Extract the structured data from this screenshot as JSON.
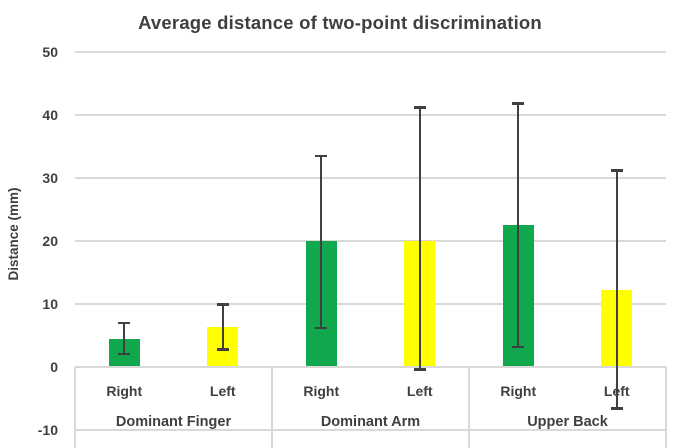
{
  "chart_data": {
    "type": "bar",
    "title": "Average distance of two-point discrimination",
    "ylabel": "Distance (mm)",
    "xlabel": "",
    "y_ticks": [
      50,
      40,
      30,
      20,
      10,
      0,
      -10
    ],
    "ylim": [
      -13,
      52
    ],
    "grid": "horizontal",
    "legend": "none",
    "groups": [
      {
        "label": "Dominant Finger",
        "bars": [
          {
            "label": "Right",
            "value": 4.5,
            "err_low": 2.1,
            "err_high": 7.0,
            "color_key": "right"
          },
          {
            "label": "Left",
            "value": 6.3,
            "err_low": 2.8,
            "err_high": 9.9,
            "color_key": "left"
          }
        ]
      },
      {
        "label": "Dominant Arm",
        "bars": [
          {
            "label": "Right",
            "value": 20.0,
            "err_low": 6.2,
            "err_high": 33.5,
            "color_key": "right"
          },
          {
            "label": "Left",
            "value": 20.0,
            "err_low": -0.4,
            "err_high": 41.2,
            "color_key": "left"
          }
        ]
      },
      {
        "label": "Upper Back",
        "bars": [
          {
            "label": "Right",
            "value": 22.5,
            "err_low": 3.2,
            "err_high": 41.8,
            "color_key": "right"
          },
          {
            "label": "Left",
            "value": 12.2,
            "err_low": -6.6,
            "err_high": 31.2,
            "color_key": "left"
          }
        ]
      }
    ],
    "colors": {
      "right": "#0fa84d",
      "left": "#ffff00",
      "error_bar": "#404040",
      "gridline": "#d9d9d9",
      "axis_table_border": "#d9d9d9",
      "text": "#3f3f3f"
    }
  }
}
